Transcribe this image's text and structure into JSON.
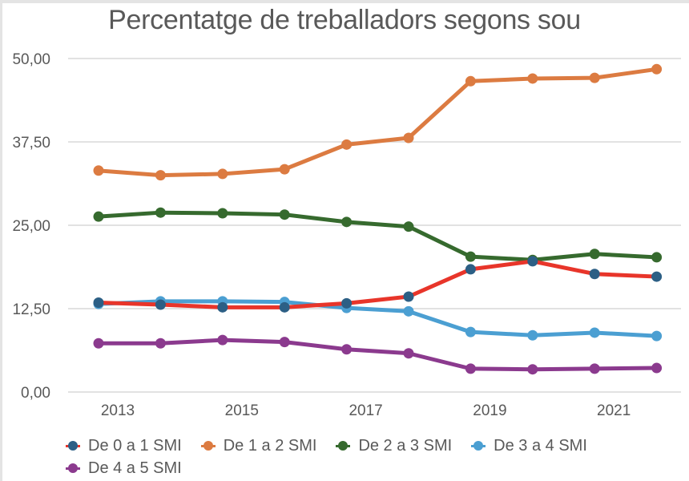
{
  "chart_data": {
    "type": "line",
    "title": "Percentatge de treballadors segons sou",
    "xlabel": "",
    "ylabel": "",
    "x": [
      2013,
      2014,
      2015,
      2016,
      2017,
      2018,
      2019,
      2020,
      2021,
      2022
    ],
    "x_tick_labels": [
      "2013",
      "2015",
      "2017",
      "2019",
      "2021"
    ],
    "y_tick_labels": [
      "0,00",
      "12,50",
      "25,00",
      "37,50",
      "50,00"
    ],
    "y_ticks": [
      0,
      12.5,
      25,
      37.5,
      50
    ],
    "ylim": [
      0,
      50
    ],
    "grid": "horizontal",
    "legend_position": "bottom",
    "series": [
      {
        "name": "De 0 a 1 SMI",
        "line_color": "#e8352a",
        "marker_color": "#2c5f85",
        "values": [
          13.4,
          13.1,
          12.7,
          12.7,
          13.3,
          14.3,
          18.4,
          19.6,
          17.7,
          17.3
        ]
      },
      {
        "name": "De 1 a 2 SMI",
        "line_color": "#dc7b41",
        "marker_color": "#dc7b41",
        "values": [
          33.2,
          32.5,
          32.7,
          33.4,
          37.1,
          38.1,
          46.6,
          47.0,
          47.1,
          48.4
        ]
      },
      {
        "name": "De 2 a 3 SMI",
        "line_color": "#366a2e",
        "marker_color": "#366a2e",
        "values": [
          26.3,
          26.9,
          26.8,
          26.6,
          25.5,
          24.8,
          20.3,
          19.8,
          20.7,
          20.2
        ]
      },
      {
        "name": "De 3 a 4 SMI",
        "line_color": "#4b9fd2",
        "marker_color": "#4b9fd2",
        "values": [
          13.2,
          13.6,
          13.6,
          13.5,
          12.6,
          12.1,
          9.0,
          8.5,
          8.9,
          8.4
        ]
      },
      {
        "name": "De 4 a 5 SMI",
        "line_color": "#8b3a8e",
        "marker_color": "#8b3a8e",
        "values": [
          7.3,
          7.3,
          7.8,
          7.5,
          6.4,
          5.8,
          3.5,
          3.4,
          3.5,
          3.6
        ]
      }
    ]
  }
}
